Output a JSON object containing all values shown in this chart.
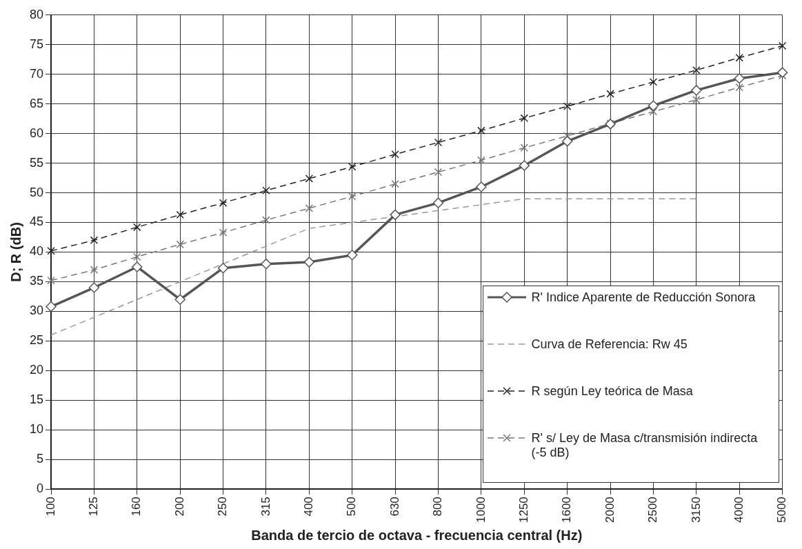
{
  "chart_data": {
    "type": "line",
    "xlabel": "Banda de tercio de octava - frecuencia central (Hz)",
    "ylabel": "D; R (dB)",
    "categories": [
      "100",
      "125",
      "160",
      "200",
      "250",
      "315",
      "400",
      "500",
      "630",
      "800",
      "1000",
      "1250",
      "1600",
      "2000",
      "2500",
      "3150",
      "4000",
      "5000"
    ],
    "ylim": [
      0,
      80
    ],
    "yticks": [
      0,
      5,
      10,
      15,
      20,
      25,
      30,
      35,
      40,
      45,
      50,
      55,
      60,
      65,
      70,
      75,
      80
    ],
    "grid": true,
    "legend": "bottom right",
    "series": [
      {
        "name": "R'  Indice Aparente de Reducción Sonora",
        "color": "#555555",
        "marker": "diamond",
        "line_style": "solid",
        "values": [
          30.8,
          34,
          37.5,
          32,
          37.3,
          38,
          38.3,
          39.5,
          46.3,
          48.3,
          51,
          54.6,
          58.7,
          61.6,
          64.7,
          67.3,
          69.3,
          70.3
        ]
      },
      {
        "name": "Curva de Referencia: Rw 45",
        "color": "#999999",
        "marker": "none",
        "line_style": "dashed",
        "values": [
          26,
          29,
          32,
          35,
          38,
          41,
          44,
          45,
          46,
          47,
          48,
          49,
          49,
          49,
          49,
          49,
          null,
          null
        ]
      },
      {
        "name": "R según Ley teórica de Masa",
        "color": "#222222",
        "marker": "cross",
        "line_style": "dashed",
        "values": [
          40.2,
          42,
          44.2,
          46.3,
          48.3,
          50.4,
          52.4,
          54.4,
          56.5,
          58.5,
          60.5,
          62.6,
          64.6,
          66.7,
          68.7,
          70.7,
          72.8,
          74.8
        ]
      },
      {
        "name": "R' s/ Ley de Masa c/transmisión indirecta (-5 dB)",
        "color": "#777777",
        "marker": "cross",
        "line_style": "dashed",
        "values": [
          35.2,
          37,
          39.2,
          41.3,
          43.3,
          45.4,
          47.4,
          49.4,
          51.5,
          53.5,
          55.5,
          57.6,
          59.6,
          61.7,
          63.7,
          65.7,
          67.8,
          69.8
        ]
      }
    ]
  }
}
